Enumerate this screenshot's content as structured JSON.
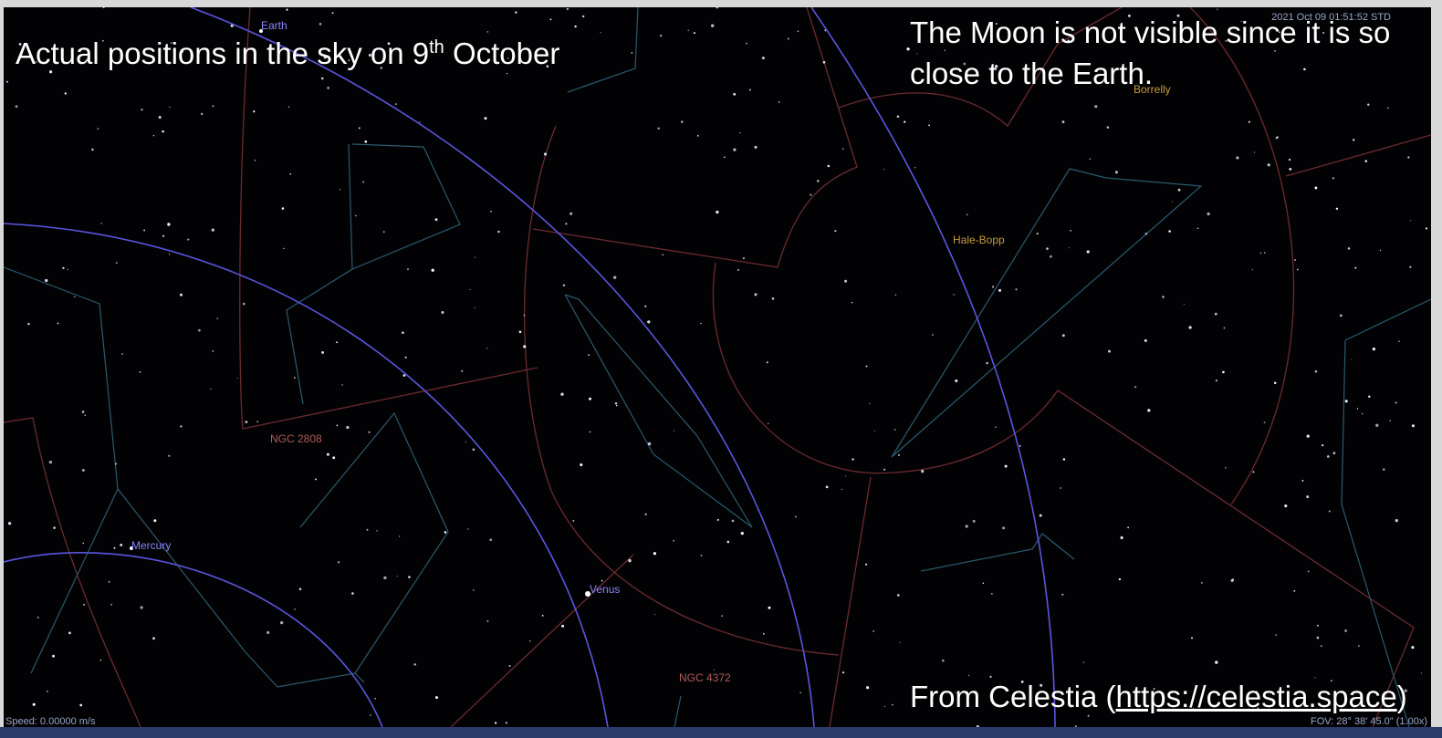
{
  "overlay": {
    "caption": {
      "text": "Actual positions in the sky on 9",
      "sup": "th",
      "tail": " October"
    },
    "note": "The Moon is not visible since it is so close to the Earth.",
    "credit": {
      "prefix": "From Celestia (",
      "link": "https://celestia.space",
      "suffix": ")"
    }
  },
  "labels": {
    "earth": "Earth",
    "mercury": "Mercury",
    "venus": "Venus",
    "hale_bopp": "Hale-Bopp",
    "borrelly": "Borrelly",
    "ngc2808": "NGC 2808",
    "ngc4372": "NGC 4372"
  },
  "status": {
    "time": "2021 Oct 09 01:51:52 STD",
    "speed": "Speed: 0.00000 m/s",
    "fov": "FOV: 28° 38' 45.0\" (1.00x)"
  }
}
